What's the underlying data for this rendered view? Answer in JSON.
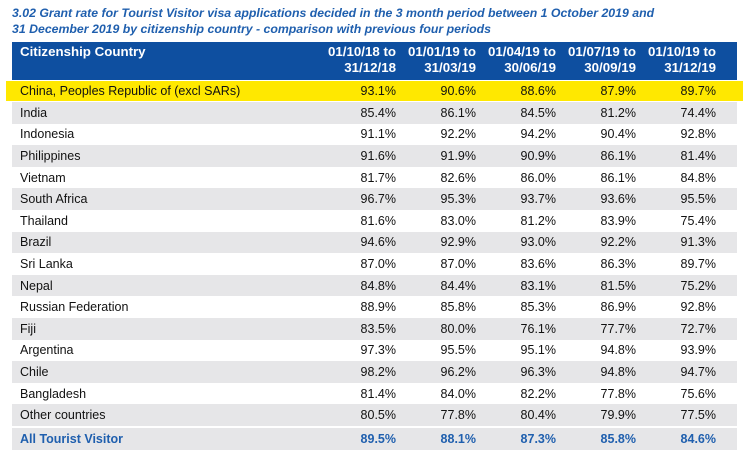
{
  "title": "3.02 Grant rate for Tourist Visitor visa applications decided in the 3 month period between 1 October 2019 and 31 December 2019 by citizenship country - comparison with previous four periods",
  "title_line1": "3.02 Grant rate for Tourist Visitor visa applications decided in the 3 month period between 1 October 2019 and",
  "title_line2": "31 December 2019 by citizenship country - comparison with previous four periods",
  "headers": [
    "Citizenship Country",
    [
      "01/10/18 to",
      "31/12/18"
    ],
    [
      "01/01/19 to",
      "31/03/19"
    ],
    [
      "01/04/19 to",
      "30/06/19"
    ],
    [
      "01/07/19 to",
      "30/09/19"
    ],
    [
      "01/10/19 to",
      "31/12/19"
    ]
  ],
  "rows": [
    [
      "China, Peoples Republic of (excl SARs)",
      "93.1%",
      "90.6%",
      "88.6%",
      "87.9%",
      "89.7%"
    ],
    [
      "India",
      "85.4%",
      "86.1%",
      "84.5%",
      "81.2%",
      "74.4%"
    ],
    [
      "Indonesia",
      "91.1%",
      "92.2%",
      "94.2%",
      "90.4%",
      "92.8%"
    ],
    [
      "Philippines",
      "91.6%",
      "91.9%",
      "90.9%",
      "86.1%",
      "81.4%"
    ],
    [
      "Vietnam",
      "81.7%",
      "82.6%",
      "86.0%",
      "86.1%",
      "84.8%"
    ],
    [
      "South Africa",
      "96.7%",
      "95.3%",
      "93.7%",
      "93.6%",
      "95.5%"
    ],
    [
      "Thailand",
      "81.6%",
      "83.0%",
      "81.2%",
      "83.9%",
      "75.4%"
    ],
    [
      "Brazil",
      "94.6%",
      "92.9%",
      "93.0%",
      "92.2%",
      "91.3%"
    ],
    [
      "Sri Lanka",
      "87.0%",
      "87.0%",
      "83.6%",
      "86.3%",
      "89.7%"
    ],
    [
      "Nepal",
      "84.8%",
      "84.4%",
      "83.1%",
      "81.5%",
      "75.2%"
    ],
    [
      "Russian Federation",
      "88.9%",
      "85.8%",
      "85.3%",
      "86.9%",
      "92.8%"
    ],
    [
      "Fiji",
      "83.5%",
      "80.0%",
      "76.1%",
      "77.7%",
      "72.7%"
    ],
    [
      "Argentina",
      "97.3%",
      "95.5%",
      "95.1%",
      "94.8%",
      "93.9%"
    ],
    [
      "Chile",
      "98.2%",
      "96.2%",
      "96.3%",
      "94.8%",
      "94.7%"
    ],
    [
      "Bangladesh",
      "81.4%",
      "84.0%",
      "82.2%",
      "77.8%",
      "75.6%"
    ],
    [
      "Other countries",
      "80.5%",
      "77.8%",
      "80.4%",
      "79.9%",
      "77.5%"
    ]
  ],
  "total": [
    "All Tourist Visitor",
    "89.5%",
    "88.1%",
    "87.3%",
    "85.8%",
    "84.6%"
  ],
  "highlight_color": "#ffe800",
  "header_color": "#0e4fa0"
}
